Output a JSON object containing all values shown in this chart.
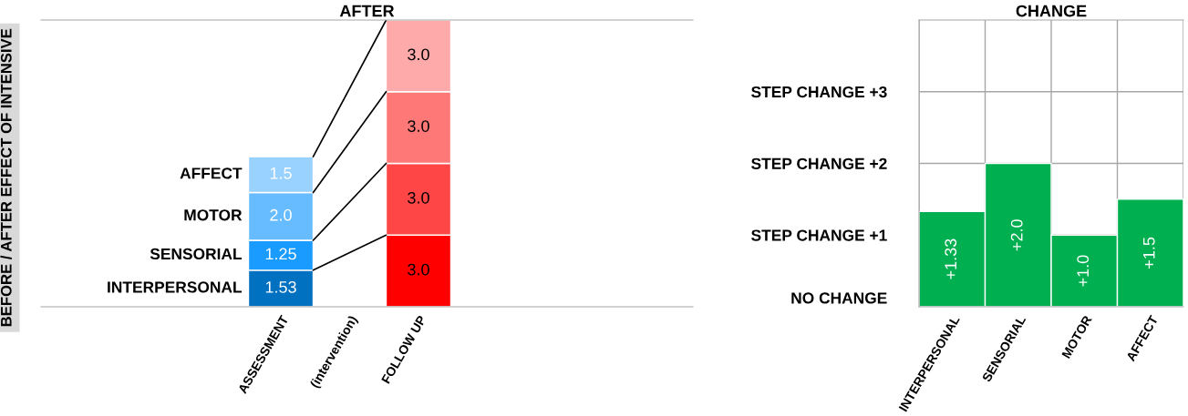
{
  "chart_data": [
    {
      "type": "bar",
      "title": "AFTER",
      "ylabel": "BEFORE / AFTER EFFECT OF INTENSIVE",
      "categories": [
        "ASSESSMENT",
        "(intervention)",
        "FOLLOW UP"
      ],
      "stacked": true,
      "tick_labels": "x",
      "series": [
        {
          "name": "INTERPERSONAL",
          "colors": [
            "#0070c0",
            null,
            "#ff0000"
          ],
          "values": [
            1.53,
            null,
            3.0
          ],
          "value_labels": [
            "1.53",
            null,
            "3.0"
          ]
        },
        {
          "name": "SENSORIAL",
          "colors": [
            "#1a9bff",
            null,
            "#ff4646"
          ],
          "values": [
            1.25,
            null,
            3.0
          ],
          "value_labels": [
            "1.25",
            null,
            "3.0"
          ]
        },
        {
          "name": "MOTOR",
          "colors": [
            "#66bcff",
            null,
            "#ff7878"
          ],
          "values": [
            2.0,
            null,
            3.0
          ],
          "value_labels": [
            "2.0",
            null,
            "3.0"
          ]
        },
        {
          "name": "AFFECT",
          "colors": [
            "#99d1ff",
            null,
            "#ffaaaa"
          ],
          "values": [
            1.5,
            null,
            3.0
          ],
          "value_labels": [
            "1.5",
            null,
            "3.0"
          ]
        }
      ]
    },
    {
      "type": "bar",
      "title": "CHANGE",
      "categories": [
        "INTERPERSONAL",
        "SENSORIAL",
        "MOTOR",
        "AFFECT"
      ],
      "values": [
        1.33,
        2.0,
        1.0,
        1.5
      ],
      "color": "#00b050",
      "value_labels": [
        "+1.33",
        "+2.0",
        "+1.0",
        "+1.5"
      ],
      "ylim": [
        0,
        4
      ],
      "yticks": [
        {
          "value": 0,
          "label": "NO CHANGE"
        },
        {
          "value": 1,
          "label": "STEP CHANGE +1"
        },
        {
          "value": 2,
          "label": "STEP CHANGE +2"
        },
        {
          "value": 3,
          "label": "STEP CHANGE +3"
        }
      ],
      "grid": true
    }
  ]
}
